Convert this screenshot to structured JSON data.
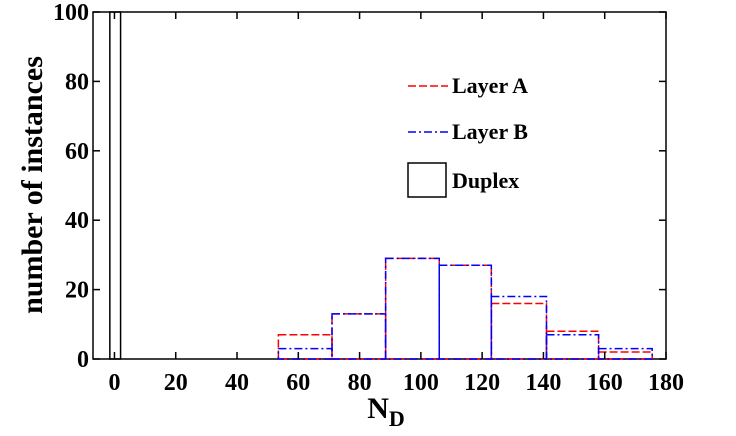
{
  "chart_data": {
    "type": "bar",
    "subtype": "step-histogram",
    "title": "",
    "xlabel": "N",
    "xlabel_subscript": "D",
    "ylabel": "number of instances",
    "xlim": [
      -7,
      180
    ],
    "ylim": [
      0,
      100
    ],
    "xticks": [
      0,
      20,
      40,
      60,
      80,
      100,
      120,
      140,
      160,
      180
    ],
    "yticks": [
      0,
      20,
      40,
      60,
      80,
      100
    ],
    "grid": false,
    "legend_position": "top-right",
    "series": [
      {
        "name": "Layer A",
        "color": "#ff0000",
        "style": "dashed",
        "bins": [
          {
            "x0": 53.5,
            "x1": 71,
            "value": 7
          },
          {
            "x0": 71,
            "x1": 88.5,
            "value": 13
          },
          {
            "x0": 88.5,
            "x1": 106,
            "value": 29
          },
          {
            "x0": 106,
            "x1": 123,
            "value": 27
          },
          {
            "x0": 123,
            "x1": 141,
            "value": 16
          },
          {
            "x0": 141,
            "x1": 158,
            "value": 8
          },
          {
            "x0": 158,
            "x1": 175.5,
            "value": 2
          }
        ]
      },
      {
        "name": "Layer B",
        "color": "#0000ff",
        "style": "dashdot",
        "bins": [
          {
            "x0": 53.5,
            "x1": 71,
            "value": 3
          },
          {
            "x0": 71,
            "x1": 88.5,
            "value": 13
          },
          {
            "x0": 88.5,
            "x1": 106,
            "value": 29
          },
          {
            "x0": 106,
            "x1": 123,
            "value": 27
          },
          {
            "x0": 123,
            "x1": 141,
            "value": 18
          },
          {
            "x0": 141,
            "x1": 158,
            "value": 7
          },
          {
            "x0": 158,
            "x1": 175.5,
            "value": 3
          }
        ]
      },
      {
        "name": "Duplex",
        "color": "#000000",
        "style": "solid",
        "bins": [
          {
            "x0": -1.5,
            "x1": 2,
            "value": 100
          }
        ]
      }
    ]
  }
}
